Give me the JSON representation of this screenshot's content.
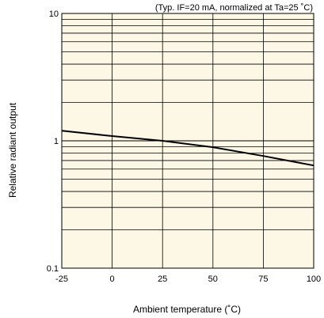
{
  "chart_data": {
    "type": "line",
    "annotation": "(Typ. IF=20 mA, normalized at Ta=25 ˚C)",
    "xlabel": "Ambient temperature (˚C)",
    "ylabel": "Relative radiant output",
    "xlim": [
      -25,
      100
    ],
    "ylim": [
      0.1,
      10
    ],
    "yscale": "log",
    "grid": true,
    "x_ticks": [
      -25,
      0,
      25,
      50,
      75,
      100
    ],
    "x_tick_labels": [
      "-25",
      "0",
      "25",
      "50",
      "75",
      "100"
    ],
    "y_ticks": [
      0.1,
      1,
      10
    ],
    "y_tick_labels": [
      "0.1",
      "1",
      "10"
    ],
    "series": [
      {
        "x": [
          -25,
          0,
          25,
          50,
          75,
          100
        ],
        "y": [
          1.2,
          1.09,
          1.0,
          0.89,
          0.76,
          0.64
        ]
      }
    ],
    "colors": {
      "plot_bg": "#fdf8e5",
      "grid": "#000000",
      "line": "#000000"
    }
  }
}
